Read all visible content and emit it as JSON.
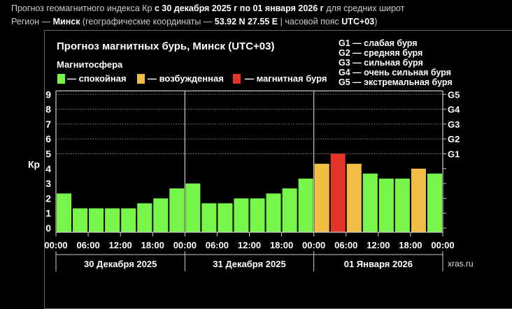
{
  "header": {
    "line1_a": "Прогноз геомагнитного индекса Кр ",
    "line1_b": "с 30 декабря 2025 г по 01 января 2026 г",
    "line1_c": " для средних широт",
    "line2_a": "Регион — ",
    "line2_b": "Минск",
    "line2_c": " (географические координаты — ",
    "line2_d": "53.92 N 27.55 E",
    "line2_e": " | часовой пояс ",
    "line2_f": "UTC+03",
    "line2_g": ")"
  },
  "legend": {
    "title": "Магнитосфера",
    "items": [
      {
        "label": "— спокойная",
        "color": "#77f54b"
      },
      {
        "label": "— возбужденная",
        "color": "#f2bd45"
      },
      {
        "label": "— магнитная буря",
        "color": "#e5352a"
      }
    ],
    "g_scale": [
      "G1 — слабая буря",
      "G2 — средняя буря",
      "G3 — сильная буря",
      "G4 — очень сильная буря",
      "G5 — экстремальная буря"
    ]
  },
  "footer": "xras.ru",
  "chart_data": {
    "type": "bar",
    "title": "Прогноз магнитных бурь, Минск (UTC+03)",
    "ylabel": "Кр",
    "ylim": [
      0,
      9
    ],
    "yticks": [
      "0",
      "1",
      "2",
      "3",
      "4",
      "5",
      "6",
      "7",
      "8",
      "9"
    ],
    "right_ticks": [
      {
        "y": 5,
        "label": "G1"
      },
      {
        "y": 6,
        "label": "G2"
      },
      {
        "y": 7,
        "label": "G3"
      },
      {
        "y": 8,
        "label": "G4"
      },
      {
        "y": 9,
        "label": "G5"
      }
    ],
    "xtick_labels": [
      "00:00",
      "06:00",
      "12:00",
      "18:00",
      "00:00",
      "06:00",
      "12:00",
      "18:00",
      "00:00",
      "06:00",
      "12:00",
      "18:00",
      "00:00"
    ],
    "days": [
      "30 Декабря 2025",
      "31 Декабря 2025",
      "01 Января 2026"
    ],
    "values": [
      2.33,
      1.33,
      1.33,
      1.33,
      1.33,
      1.67,
      2.0,
      2.67,
      3.0,
      1.67,
      1.67,
      2.0,
      2.0,
      2.33,
      2.67,
      3.33,
      4.33,
      5.0,
      4.33,
      3.67,
      3.33,
      3.33,
      4.0,
      3.67
    ],
    "levels": [
      "quiet",
      "quiet",
      "quiet",
      "quiet",
      "quiet",
      "quiet",
      "quiet",
      "quiet",
      "quiet",
      "quiet",
      "quiet",
      "quiet",
      "quiet",
      "quiet",
      "quiet",
      "quiet",
      "active",
      "storm",
      "active",
      "quiet",
      "quiet",
      "quiet",
      "active",
      "quiet"
    ],
    "colors": {
      "quiet": "#77f54b",
      "active": "#f2bd45",
      "storm": "#e5352a"
    }
  }
}
